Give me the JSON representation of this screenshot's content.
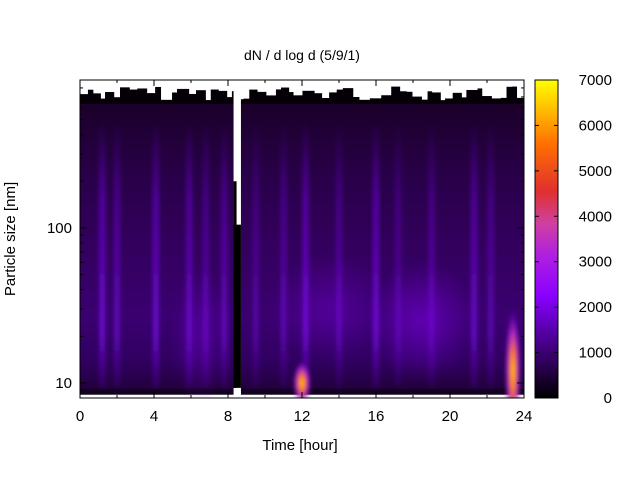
{
  "chart_data": {
    "type": "heatmap",
    "title": "dN / d log d (5/9/1)",
    "xlabel": "Time [hour]",
    "ylabel": "Particle size [nm]",
    "xlim": [
      0,
      24
    ],
    "x_ticks": [
      "0",
      "4",
      "8",
      "12",
      "16",
      "20",
      "24"
    ],
    "y_scale": "log",
    "ylim": [
      8,
      900
    ],
    "y_ticks": [
      "10",
      "100"
    ],
    "colorbar": {
      "min": 0,
      "max": 7000,
      "ticks": [
        "0",
        "1000",
        "2000",
        "3000",
        "4000",
        "5000",
        "6000",
        "7000"
      ],
      "palette": [
        "#000000",
        "#3a0070",
        "#8a00ff",
        "#c030d0",
        "#e04040",
        "#ff8000",
        "#ffff00"
      ]
    },
    "data_gap_hours": [
      8.3,
      8.7
    ],
    "features": [
      {
        "label": "peak",
        "time_hour": 12.0,
        "size_nm": 10,
        "value": 5500
      },
      {
        "label": "peak",
        "time_hour": 23.4,
        "size_nm": 12,
        "value": 4500
      }
    ]
  }
}
